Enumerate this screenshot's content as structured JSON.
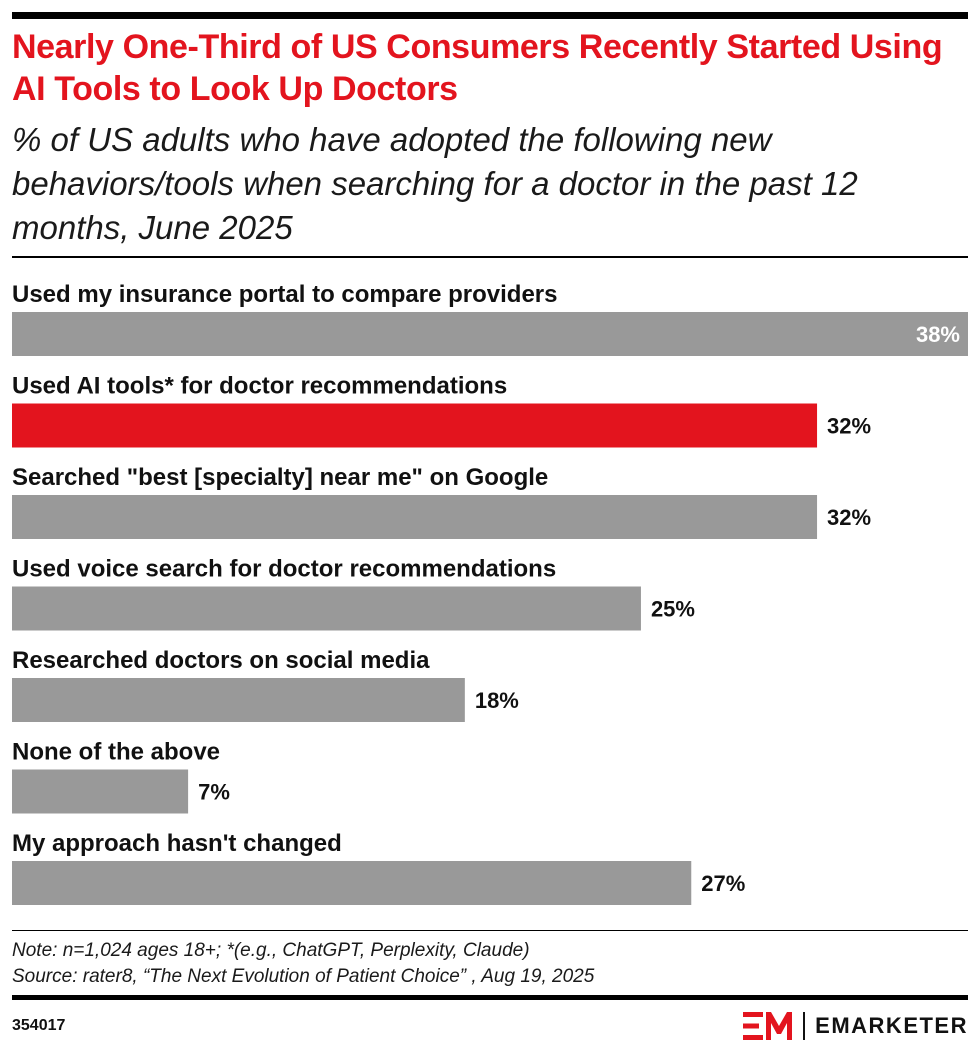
{
  "title": "Nearly One-Third of US Consumers Recently Started Using AI Tools to Look Up Doctors",
  "subtitle": "% of US adults who have adopted the following new behaviors/tools when searching for a doctor in the past 12 months, June 2025",
  "note": "Note: n=1,024 ages 18+; *(e.g., ChatGPT, Perplexity, Claude)",
  "source": "Source: rater8, “The Next Evolution of Patient Choice” , Aug 19, 2025",
  "chart_id": "354017",
  "brand": {
    "name": "EMARKETER",
    "icon": "em-logo-icon"
  },
  "colors": {
    "accent": "#e3141e",
    "bar": "#999999",
    "text": "#111111"
  },
  "chart_data": {
    "type": "bar",
    "orientation": "horizontal",
    "categories": [
      "Used my insurance portal to compare providers",
      "Used AI tools* for doctor recommendations",
      "Searched \"best [specialty] near me\" on Google",
      "Used voice search for doctor recommendations",
      "Researched doctors on social media",
      "None of the above",
      "My approach hasn't changed"
    ],
    "values": [
      38,
      32,
      32,
      25,
      18,
      7,
      27
    ],
    "value_labels": [
      "38%",
      "32%",
      "32%",
      "25%",
      "18%",
      "7%",
      "27%"
    ],
    "highlight_index": 1,
    "xlim": [
      0,
      38
    ],
    "grid": false,
    "legend": "none"
  }
}
